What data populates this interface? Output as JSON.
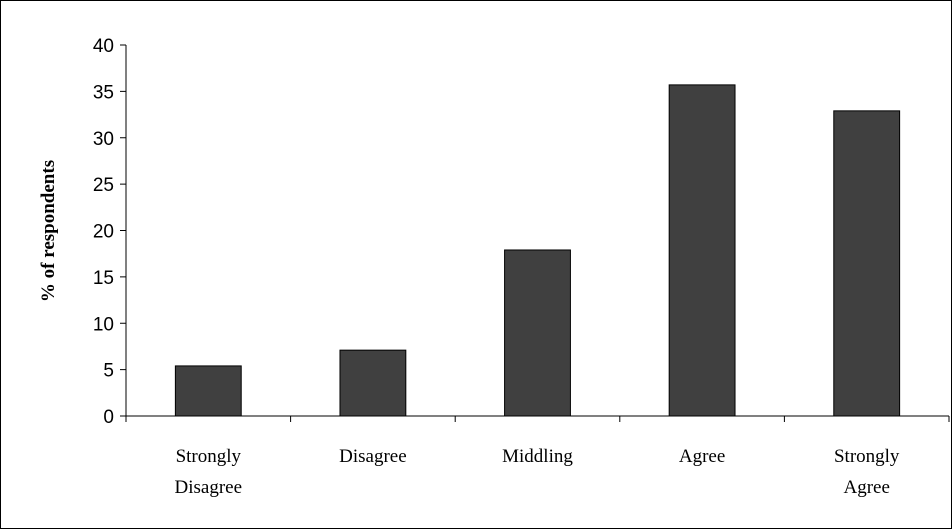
{
  "chart_data": {
    "type": "bar",
    "categories": [
      [
        "Strongly",
        "Disagree"
      ],
      [
        "Disagree"
      ],
      [
        "Middling"
      ],
      [
        "Agree"
      ],
      [
        "Strongly",
        "Agree"
      ]
    ],
    "values": [
      5.4,
      7.1,
      17.9,
      35.7,
      32.9
    ],
    "title": "",
    "xlabel": "",
    "ylabel": "% of respondents",
    "ylim": [
      0,
      40
    ],
    "yticks": [
      0,
      5,
      10,
      15,
      20,
      25,
      30,
      35,
      40
    ],
    "grid": false,
    "legend": "none",
    "colors": {
      "bar": "#404040",
      "bar_stroke": "#000000",
      "axis": "#000000"
    }
  }
}
